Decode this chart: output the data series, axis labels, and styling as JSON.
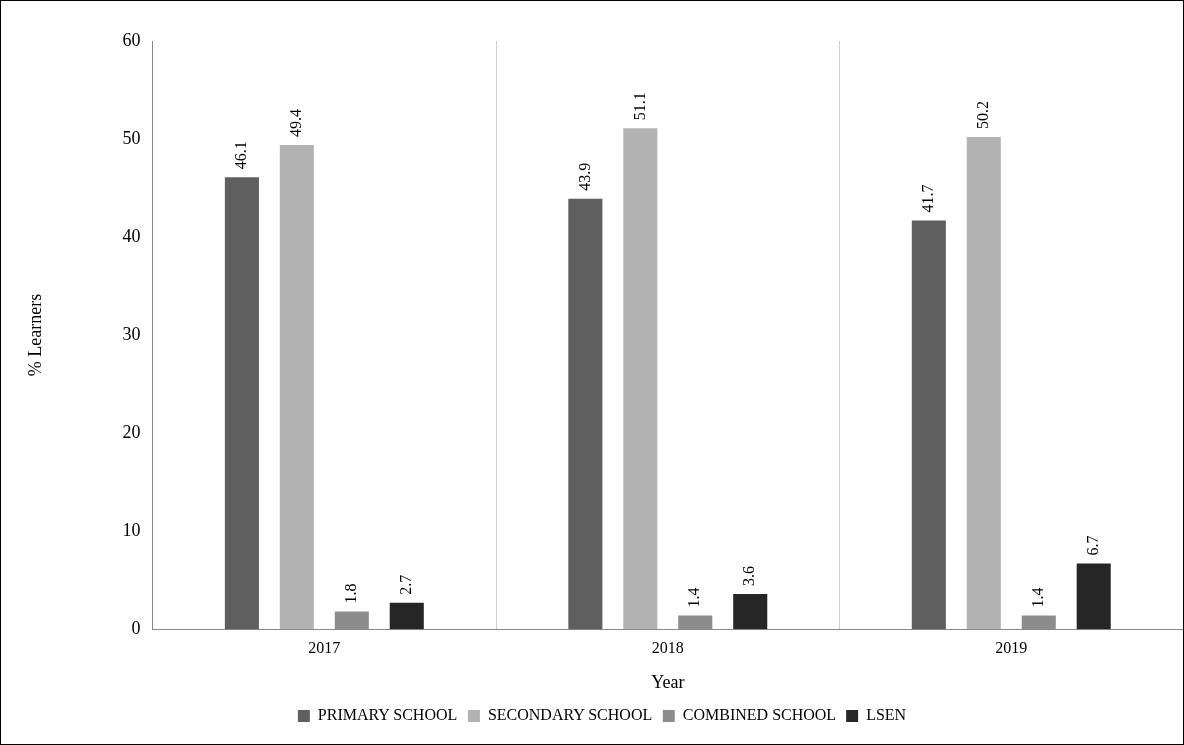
{
  "chart_data": {
    "type": "bar",
    "xlabel": "Year",
    "ylabel": "% Learners",
    "categories": [
      "2017",
      "2018",
      "2019"
    ],
    "series": [
      {
        "name": "PRIMARY SCHOOL",
        "color": "#5f5f5f",
        "values": [
          46.1,
          43.9,
          41.7
        ]
      },
      {
        "name": "SECONDARY SCHOOL",
        "color": "#b2b2b2",
        "values": [
          49.4,
          51.1,
          50.2
        ]
      },
      {
        "name": "COMBINED SCHOOL",
        "color": "#8c8c8c",
        "values": [
          1.8,
          1.4,
          1.4
        ]
      },
      {
        "name": "LSEN",
        "color": "#262626",
        "values": [
          2.7,
          3.6,
          6.7
        ]
      }
    ],
    "ylim": [
      0,
      60
    ],
    "yticks": [
      0,
      10,
      20,
      30,
      40,
      50,
      60
    ],
    "grid": "x",
    "legend": "bottom",
    "data_labels": true
  }
}
